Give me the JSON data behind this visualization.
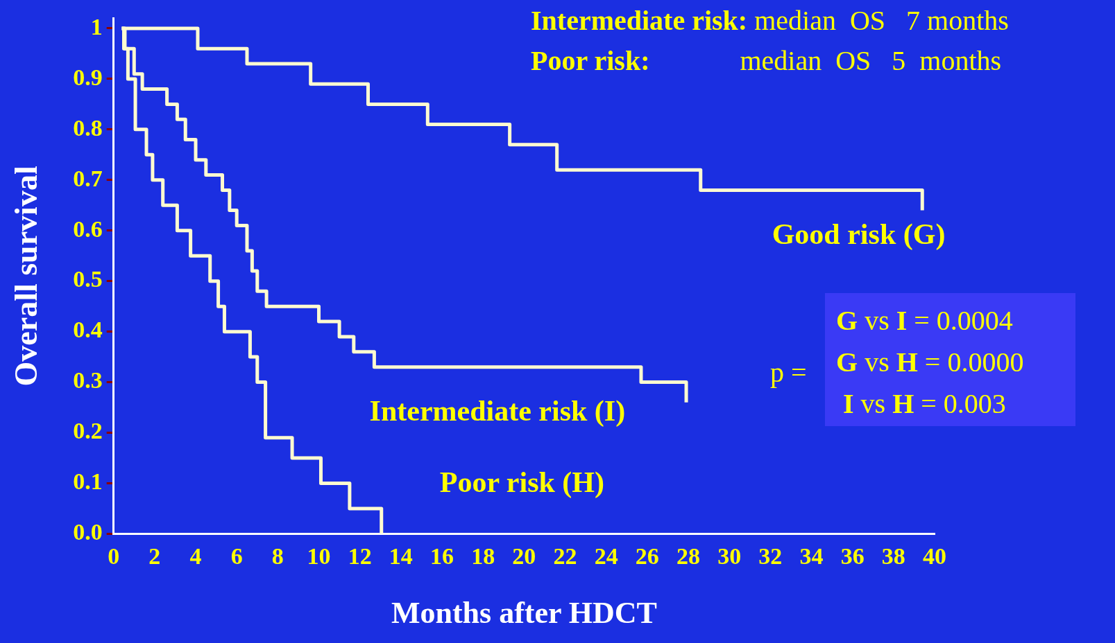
{
  "chart_data": {
    "type": "step",
    "xlabel": "Months after HDCT",
    "ylabel": "Overall survival",
    "xlim": [
      0,
      40
    ],
    "xticks": [
      0,
      2,
      4,
      6,
      8,
      10,
      12,
      14,
      16,
      18,
      20,
      22,
      24,
      26,
      28,
      30,
      32,
      34,
      36,
      38,
      40
    ],
    "ylim": [
      0,
      1.02
    ],
    "yticks": [
      {
        "value": 0,
        "label": "0.0"
      },
      0.1,
      0.2,
      0.3,
      0.4,
      0.5,
      0.6,
      0.7,
      0.8,
      0.9,
      {
        "value": 1,
        "label": "1"
      }
    ],
    "grid": false,
    "legend": false,
    "marker": "none",
    "line_style": "solid",
    "series": [
      {
        "name": "Good risk (G)",
        "color": "#fffbd0",
        "x": [
          0.4,
          4.1,
          6.5,
          9.6,
          12.4,
          15.3,
          19.3,
          21.6,
          28.6,
          39.4
        ],
        "values": [
          1,
          0.96,
          0.93,
          0.89,
          0.85,
          0.81,
          0.77,
          0.72,
          0.68,
          0.64
        ]
      },
      {
        "name": "Intermediate risk (I)",
        "color": "#fffbd0",
        "x": [
          0.4,
          0.55,
          1.0,
          1.4,
          2.6,
          3.1,
          3.5,
          4.0,
          4.5,
          5.3,
          5.65,
          6.0,
          6.5,
          6.75,
          7.0,
          7.45,
          10.0,
          11.0,
          11.7,
          12.7,
          25.7,
          27.9
        ],
        "values": [
          1,
          0.96,
          0.91,
          0.88,
          0.85,
          0.82,
          0.78,
          0.74,
          0.71,
          0.68,
          0.64,
          0.61,
          0.56,
          0.52,
          0.48,
          0.45,
          0.42,
          0.39,
          0.36,
          0.33,
          0.3,
          0.26
        ]
      },
      {
        "name": "Poor risk (H)",
        "color": "#fffbd0",
        "x": [
          0.4,
          0.5,
          0.7,
          1.06,
          1.6,
          1.9,
          2.4,
          3.1,
          3.75,
          4.7,
          5.1,
          5.4,
          6.65,
          7.0,
          7.4,
          8.7,
          10.1,
          11.5,
          13.05
        ],
        "values": [
          1,
          0.96,
          0.9,
          0.8,
          0.75,
          0.7,
          0.65,
          0.6,
          0.55,
          0.5,
          0.45,
          0.4,
          0.35,
          0.3,
          0.19,
          0.15,
          0.1,
          0.05,
          0
        ]
      }
    ],
    "annotations": [
      "Intermediate risk: median  OS   7 months",
      "Poor risk:             median  OS   5  months",
      "p =",
      "G vs I = 0.0004",
      "G vs H = 0.0000",
      " I vs H = 0.003"
    ]
  }
}
